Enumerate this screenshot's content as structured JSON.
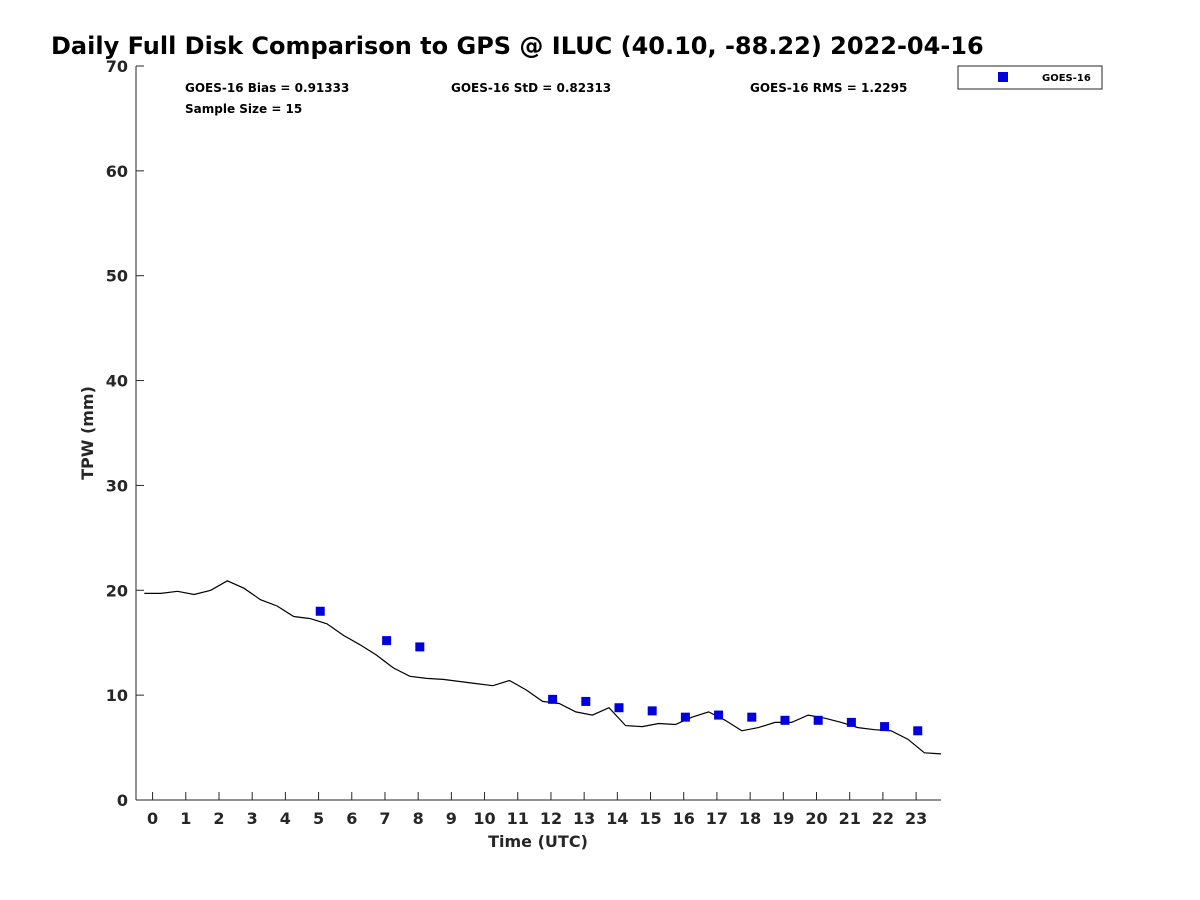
{
  "chart_data": {
    "type": "scatter",
    "title": "Daily Full Disk Comparison to GPS @ ILUC (40.10, -88.22) 2022-04-16",
    "xlabel": "Time (UTC)",
    "ylabel": "TPW (mm)",
    "xlim": [
      -0.5,
      23.75
    ],
    "ylim": [
      0,
      70
    ],
    "xticks": [
      "0",
      "1",
      "2",
      "3",
      "4",
      "5",
      "6",
      "7",
      "8",
      "9",
      "10",
      "11",
      "12",
      "13",
      "14",
      "15",
      "16",
      "17",
      "18",
      "19",
      "20",
      "21",
      "22",
      "23"
    ],
    "yticks": [
      "0",
      "10",
      "20",
      "30",
      "40",
      "50",
      "60",
      "70"
    ],
    "stats": {
      "bias": "GOES-16 Bias = 0.91333",
      "std": "GOES-16 StD = 0.82313",
      "rms": "GOES-16 RMS = 1.2295",
      "sample": "Sample Size = 15"
    },
    "legend": {
      "label": "GOES-16",
      "placement": "top-right",
      "color": "#0000dd"
    },
    "series": [
      {
        "name": "GPS",
        "kind": "line",
        "color": "#000000",
        "x": [
          -0.25,
          0.25,
          0.75,
          1.25,
          1.75,
          2.25,
          2.75,
          3.25,
          3.75,
          4.25,
          4.75,
          5.25,
          5.75,
          6.25,
          6.75,
          7.25,
          7.75,
          8.25,
          8.75,
          9.25,
          9.75,
          10.25,
          10.75,
          11.25,
          11.75,
          12.25,
          12.75,
          13.25,
          13.75,
          14.25,
          14.75,
          15.25,
          15.75,
          16.25,
          16.75,
          17.25,
          17.75,
          18.25,
          18.75,
          19.25,
          19.75,
          20.25,
          20.75,
          21.25,
          21.75,
          22.25,
          22.75,
          23.25,
          23.75
        ],
        "y": [
          19.7,
          19.7,
          19.9,
          19.6,
          20.0,
          20.9,
          20.2,
          19.1,
          18.5,
          17.5,
          17.3,
          16.8,
          15.7,
          14.8,
          13.8,
          12.6,
          11.8,
          11.6,
          11.5,
          11.3,
          11.1,
          10.9,
          11.4,
          10.5,
          9.4,
          9.2,
          8.4,
          8.1,
          8.8,
          7.1,
          7.0,
          7.3,
          7.2,
          7.9,
          8.4,
          7.6,
          6.6,
          6.9,
          7.4,
          7.4,
          8.1,
          7.8,
          7.4,
          6.9,
          6.7,
          6.6,
          5.8,
          4.5,
          4.4
        ]
      },
      {
        "name": "GOES-16",
        "kind": "scatter",
        "color": "#0000dd",
        "x": [
          5.05,
          7.05,
          8.05,
          12.05,
          13.05,
          14.05,
          15.05,
          16.05,
          17.05,
          18.05,
          19.05,
          20.05,
          21.05,
          22.05,
          23.05
        ],
        "y": [
          18.0,
          15.2,
          14.6,
          9.6,
          9.4,
          8.8,
          8.5,
          7.9,
          8.1,
          7.9,
          7.6,
          7.6,
          7.4,
          7.0,
          6.6
        ]
      }
    ]
  }
}
